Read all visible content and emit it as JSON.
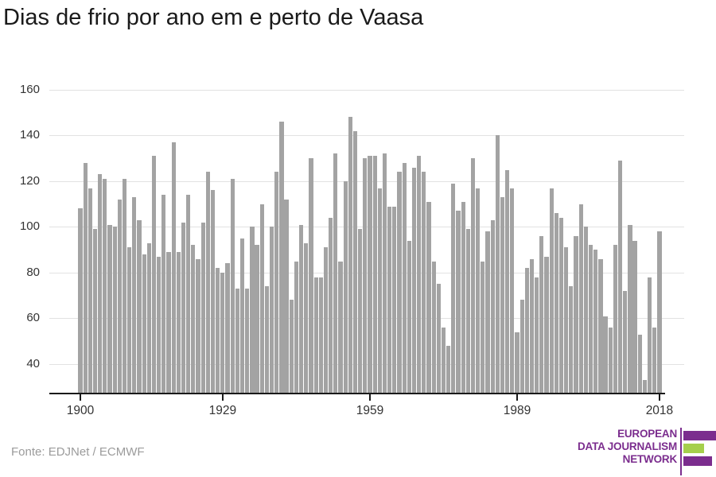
{
  "title": "Dias de frio por ano em e perto de Vaasa",
  "source": "Fonte: EDJNet / ECMWF",
  "logo": {
    "lines": [
      "EUROPEAN",
      "DATA JOURNALISM",
      "NETWORK"
    ],
    "purple": "#7b2d8e",
    "green": "#a5cf4c"
  },
  "chart_data": {
    "type": "bar",
    "title": "Dias de frio por ano em e perto de Vaasa",
    "xlabel": "",
    "ylabel": "",
    "year_start": 1900,
    "year_end": 2018,
    "values": [
      108,
      128,
      117,
      99,
      123,
      121,
      101,
      100,
      112,
      121,
      91,
      113,
      103,
      88,
      93,
      131,
      87,
      114,
      89,
      137,
      89,
      102,
      114,
      92,
      86,
      102,
      124,
      116,
      82,
      80,
      84,
      121,
      73,
      95,
      73,
      100,
      92,
      110,
      74,
      100,
      124,
      146,
      112,
      68,
      85,
      101,
      93,
      130,
      78,
      78,
      91,
      104,
      132,
      85,
      120,
      148,
      142,
      99,
      130,
      131,
      131,
      117,
      132,
      109,
      109,
      124,
      128,
      94,
      126,
      131,
      124,
      111,
      85,
      75,
      56,
      48,
      119,
      107,
      111,
      99,
      130,
      117,
      85,
      98,
      103,
      140,
      113,
      125,
      117,
      54,
      68,
      82,
      86,
      78,
      96,
      87,
      117,
      106,
      104,
      91,
      74,
      96,
      110,
      100,
      92,
      90,
      86,
      61,
      56,
      92,
      129,
      72,
      101,
      94,
      53,
      33,
      78,
      56,
      98
    ],
    "x_ticks": [
      1900,
      1929,
      1959,
      1989,
      2018
    ],
    "y_ticks": [
      40,
      60,
      80,
      100,
      120,
      140,
      160
    ],
    "ylim": [
      27,
      163
    ],
    "bar_color": "#a3a3a3",
    "grid": "horizontal",
    "legend": "none"
  }
}
